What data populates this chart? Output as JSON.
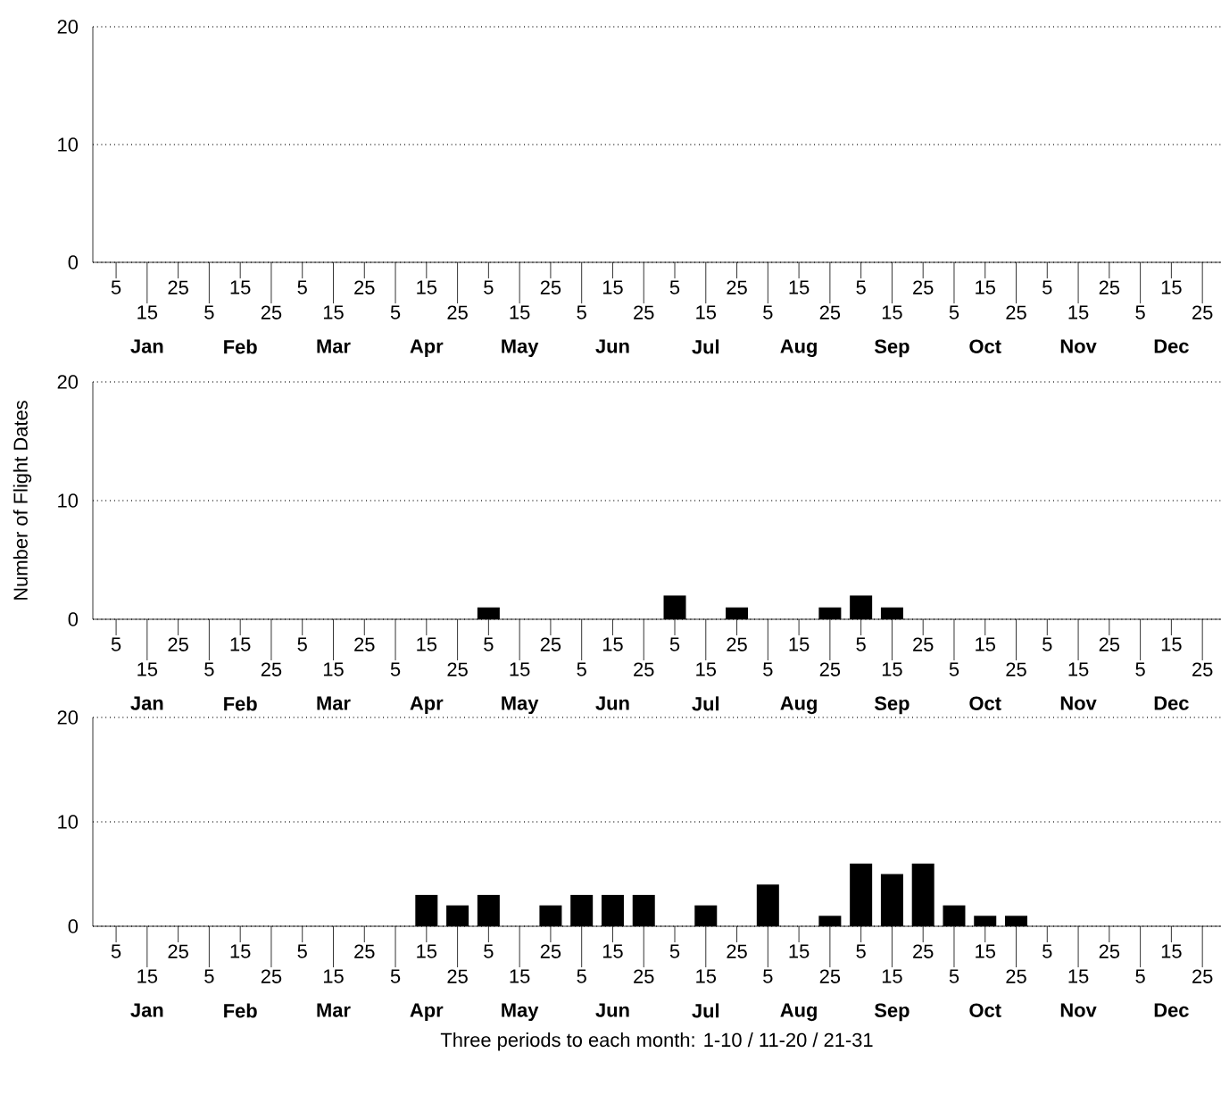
{
  "chart_data": [
    {
      "type": "bar",
      "color": "#000000",
      "grid": "y",
      "ylim": [
        0,
        20
      ],
      "yticks": [
        0,
        10,
        20
      ],
      "categories": [
        "5",
        "15",
        "25",
        "5",
        "15",
        "25",
        "5",
        "15",
        "25",
        "5",
        "15",
        "25",
        "5",
        "15",
        "25",
        "5",
        "15",
        "25",
        "5",
        "15",
        "25",
        "5",
        "15",
        "25",
        "5",
        "15",
        "25",
        "5",
        "15",
        "25",
        "5",
        "15",
        "25",
        "5",
        "15",
        "25"
      ],
      "values": [
        0,
        0,
        0,
        0,
        0,
        0,
        0,
        0,
        0,
        0,
        0,
        0,
        0,
        0,
        0,
        0,
        0,
        0,
        0,
        0,
        0,
        0,
        0,
        0,
        0,
        0,
        0,
        0,
        0,
        0,
        0,
        0,
        0,
        0,
        0,
        0
      ],
      "annotations": [
        "Jan",
        "Feb",
        "Mar",
        "Apr",
        "May",
        "Jun",
        "Jul",
        "Aug",
        "Sep",
        "Oct",
        "Nov",
        "Dec"
      ]
    },
    {
      "type": "bar",
      "color": "#000000",
      "grid": "y",
      "ylim": [
        0,
        20
      ],
      "yticks": [
        0,
        10,
        20
      ],
      "ylabel": "Number of Flight Dates",
      "categories": [
        "5",
        "15",
        "25",
        "5",
        "15",
        "25",
        "5",
        "15",
        "25",
        "5",
        "15",
        "25",
        "5",
        "15",
        "25",
        "5",
        "15",
        "25",
        "5",
        "15",
        "25",
        "5",
        "15",
        "25",
        "5",
        "15",
        "25",
        "5",
        "15",
        "25",
        "5",
        "15",
        "25",
        "5",
        "15",
        "25"
      ],
      "values": [
        0,
        0,
        0,
        0,
        0,
        0,
        0,
        0,
        0,
        0,
        0,
        0,
        1,
        0,
        0,
        0,
        0,
        0,
        2,
        0,
        1,
        0,
        0,
        1,
        2,
        1,
        0,
        0,
        0,
        0,
        0,
        0,
        0,
        0,
        0,
        0
      ],
      "annotations": [
        "Jan",
        "Feb",
        "Mar",
        "Apr",
        "May",
        "Jun",
        "Jul",
        "Aug",
        "Sep",
        "Oct",
        "Nov",
        "Dec"
      ]
    },
    {
      "type": "bar",
      "color": "#000000",
      "grid": "y",
      "ylim": [
        0,
        20
      ],
      "yticks": [
        0,
        10,
        20
      ],
      "xlabel": "Three periods to each month: 1-10 / 11-20 / 21-31",
      "categories": [
        "5",
        "15",
        "25",
        "5",
        "15",
        "25",
        "5",
        "15",
        "25",
        "5",
        "15",
        "25",
        "5",
        "15",
        "25",
        "5",
        "15",
        "25",
        "5",
        "15",
        "25",
        "5",
        "15",
        "25",
        "5",
        "15",
        "25",
        "5",
        "15",
        "25",
        "5",
        "15",
        "25",
        "5",
        "15",
        "25"
      ],
      "values": [
        0,
        0,
        0,
        0,
        0,
        0,
        0,
        0,
        0,
        0,
        3,
        2,
        3,
        0,
        2,
        3,
        3,
        3,
        0,
        2,
        0,
        4,
        0,
        1,
        6,
        5,
        6,
        2,
        1,
        1,
        0,
        0,
        0,
        0,
        0,
        0
      ],
      "annotations": [
        "Jan",
        "Feb",
        "Mar",
        "Apr",
        "May",
        "Jun",
        "Jul",
        "Aug",
        "Sep",
        "Oct",
        "Nov",
        "Dec"
      ]
    }
  ]
}
